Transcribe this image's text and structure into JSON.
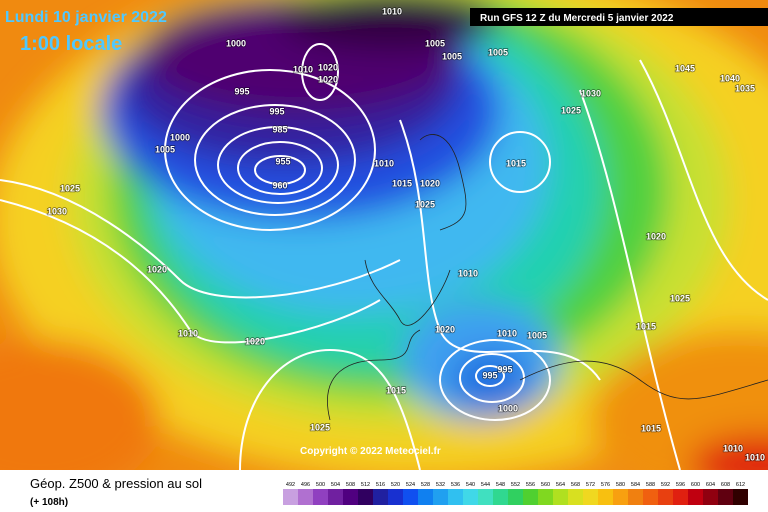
{
  "header": {
    "date": "Lundi 10 janvier 2022",
    "time": "1:00 locale",
    "run": "Run GFS 12 Z du Mercredi 5 janvier 2022"
  },
  "copyright": "Copyright © 2022 Meteociel.fr",
  "isobar_labels": [
    1000,
    1010,
    1005,
    1005,
    1005,
    1010,
    1020,
    1020,
    995,
    995,
    985,
    955,
    960,
    1000,
    1005,
    1025,
    1030,
    1020,
    1010,
    1020,
    1010,
    1015,
    1020,
    1025,
    1015,
    1030,
    1025,
    1045,
    1040,
    1035,
    1020,
    1025,
    1015,
    1010,
    1020,
    1010,
    1005,
    995,
    995,
    1000,
    1015,
    1025,
    1015,
    1010,
    1010
  ],
  "footer": {
    "title": "Géop. Z500 & pression au sol",
    "lead_time": "(+ 108h)"
  },
  "legend": {
    "values": [
      492,
      496,
      500,
      504,
      508,
      512,
      516,
      520,
      524,
      528,
      532,
      536,
      540,
      544,
      548,
      552,
      556,
      560,
      564,
      568,
      572,
      576,
      580,
      584,
      588,
      592,
      596,
      600,
      604,
      608,
      612
    ],
    "colors": [
      "#c8a0e0",
      "#b070d0",
      "#9040c0",
      "#7020a0",
      "#500080",
      "#300060",
      "#2020a0",
      "#1830d0",
      "#1050f0",
      "#1080f0",
      "#20a0f0",
      "#30c0f0",
      "#40d8e8",
      "#40e0c0",
      "#30d890",
      "#30d060",
      "#50d030",
      "#80d820",
      "#b0e020",
      "#d8e020",
      "#f0d820",
      "#f8c010",
      "#f8a010",
      "#f08010",
      "#f06010",
      "#e84010",
      "#e02010",
      "#c00010",
      "#900010",
      "#600010",
      "#300000"
    ]
  }
}
